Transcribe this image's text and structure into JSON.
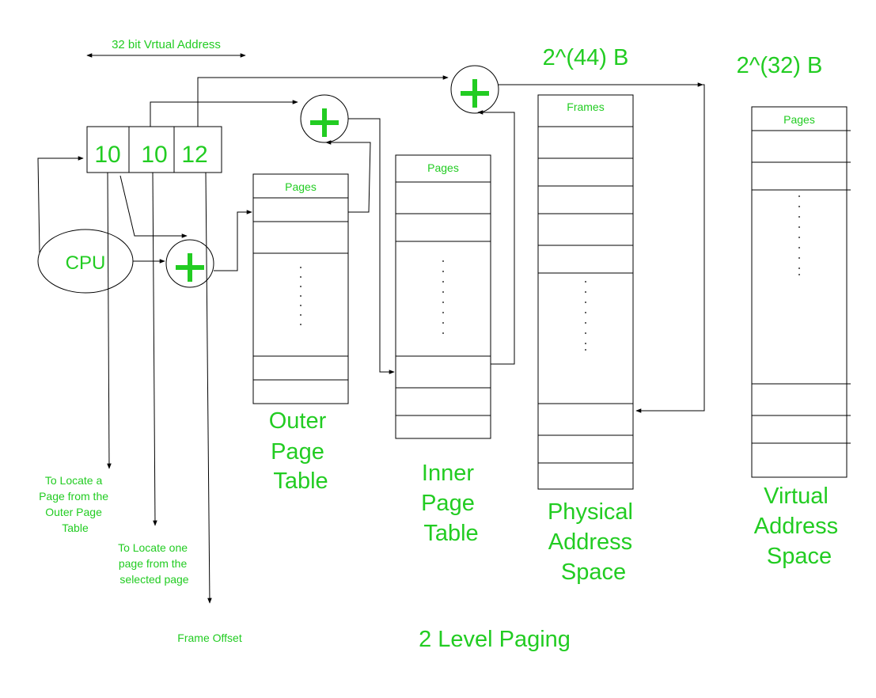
{
  "diagram": {
    "title": "2 Level Paging",
    "address_label": "32 bit Vrtual Address",
    "address_fields": [
      "10",
      "10",
      "12"
    ],
    "cpu_label": "CPU",
    "plus_symbol": "+",
    "outer_table": {
      "header": "Pages",
      "caption": [
        "Outer",
        "Page",
        "Table"
      ]
    },
    "inner_table": {
      "header": "Pages",
      "caption": [
        "Inner",
        "Page",
        "Table"
      ]
    },
    "physical_space": {
      "header": "Frames",
      "size": "2^(44) B",
      "caption": [
        "Physical",
        "Address",
        "Space"
      ]
    },
    "virtual_space": {
      "header": "Pages",
      "size": "2^(32) B",
      "caption": [
        "Virtual",
        "Address",
        "Space"
      ]
    },
    "notes": {
      "outer": [
        "To Locate a",
        "Page from the",
        "Outer Page",
        "Table"
      ],
      "inner": [
        "To Locate one",
        "page from the",
        "selected page"
      ],
      "offset": "Frame Offset"
    },
    "colors": {
      "accent": "#22cc22",
      "line": "#000000"
    }
  }
}
